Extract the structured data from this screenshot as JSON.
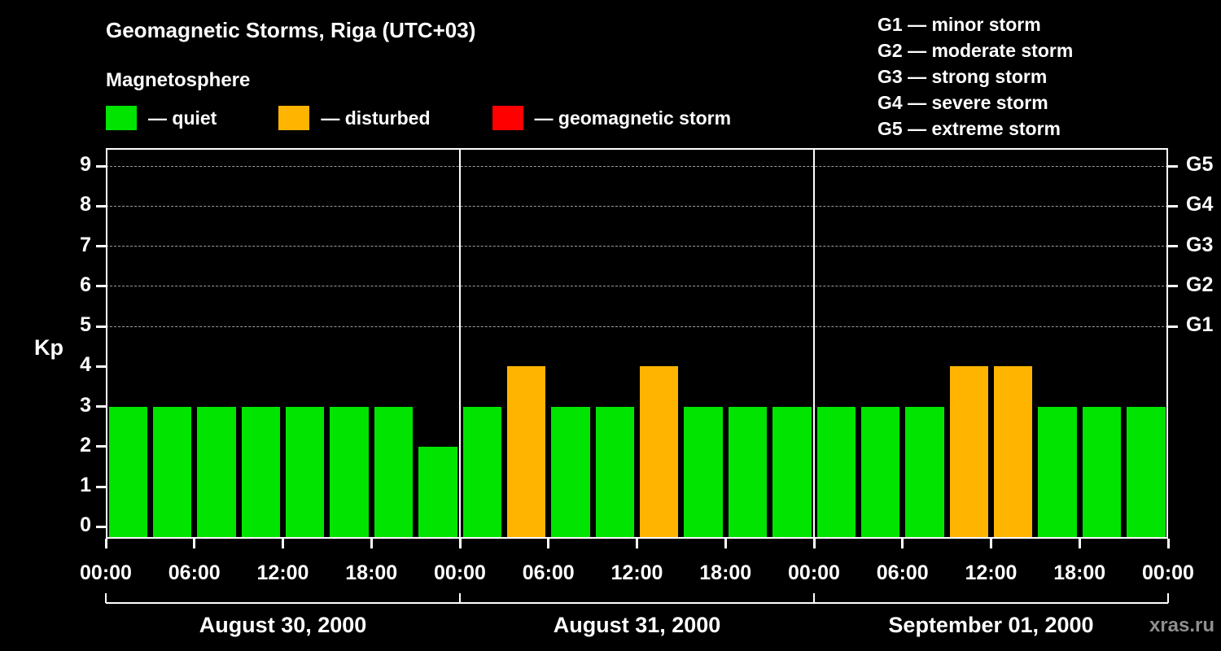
{
  "header": {
    "title": "Geomagnetic Storms, Riga (UTC+03)",
    "legend_heading": "Magnetosphere",
    "legend_items": [
      {
        "name": "quiet",
        "label": "— quiet",
        "color": "#00e400"
      },
      {
        "name": "disturbed",
        "label": "— disturbed",
        "color": "#ffb400"
      },
      {
        "name": "geomagnetic-storm",
        "label": "— geomagnetic storm",
        "color": "#ff0000"
      }
    ],
    "g_scale_legend": [
      "G1 — minor storm",
      "G2 — moderate storm",
      "G3 — strong storm",
      "G4 — severe storm",
      "G5 — extreme storm"
    ]
  },
  "watermark": "xras.ru",
  "chart_data": {
    "type": "bar",
    "title": "Geomagnetic Storms, Riga (UTC+03)",
    "ylabel": "Kp",
    "ylim": [
      0,
      9
    ],
    "yticks": [
      0,
      1,
      2,
      3,
      4,
      5,
      6,
      7,
      8,
      9
    ],
    "gridlines_at": [
      5,
      6,
      7,
      8,
      9
    ],
    "grid": "dashed-horizontal",
    "right_axis_labels": [
      {
        "kp": 5,
        "label": "G1"
      },
      {
        "kp": 6,
        "label": "G2"
      },
      {
        "kp": 7,
        "label": "G3"
      },
      {
        "kp": 8,
        "label": "G4"
      },
      {
        "kp": 9,
        "label": "G5"
      }
    ],
    "x_tick_labels": [
      "00:00",
      "06:00",
      "12:00",
      "18:00",
      "00:00",
      "06:00",
      "12:00",
      "18:00",
      "00:00",
      "06:00",
      "12:00",
      "18:00",
      "00:00"
    ],
    "bar_interval_hours": 3,
    "days": [
      {
        "date": "August 30, 2000",
        "kp_values": [
          3,
          3,
          3,
          3,
          3,
          3,
          3,
          2
        ]
      },
      {
        "date": "August 31, 2000",
        "kp_values": [
          3,
          4,
          3,
          3,
          4,
          3,
          3,
          3
        ]
      },
      {
        "date": "September 01, 2000",
        "kp_values": [
          3,
          3,
          3,
          4,
          4,
          3,
          3,
          3
        ]
      }
    ],
    "color_thresholds": {
      "quiet_max_kp": 3,
      "disturbed_max_kp": 4
    }
  }
}
